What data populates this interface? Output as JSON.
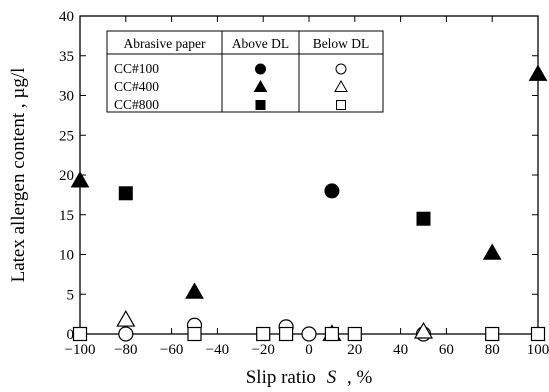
{
  "chart_data": {
    "type": "scatter",
    "xlabel_prefix": "Slip ratio",
    "xlabel_var": "S",
    "xlabel_suffix": ", %",
    "ylabel": "Latex allergen content , µg/l",
    "xlim": [
      -100,
      100
    ],
    "ylim": [
      0,
      40
    ],
    "xticks": [
      -100,
      -80,
      -60,
      -40,
      -20,
      0,
      20,
      40,
      60,
      80,
      100
    ],
    "yticks": [
      0,
      5,
      10,
      15,
      20,
      25,
      30,
      35,
      40
    ],
    "xtick_labels": [
      "−100",
      "−80",
      "−60",
      "−40",
      "−20",
      "0",
      "20",
      "40",
      "60",
      "80",
      "100"
    ],
    "ytick_labels": [
      "0",
      "5",
      "10",
      "15",
      "20",
      "25",
      "30",
      "35",
      "40"
    ],
    "grid": false,
    "legend": {
      "placement": "top-left",
      "headers": [
        "Abrasive paper",
        "Above DL",
        "Below DL"
      ],
      "rows": [
        {
          "label": "CC#100",
          "marker": "circle"
        },
        {
          "label": "CC#400",
          "marker": "triangle"
        },
        {
          "label": "CC#800",
          "marker": "square"
        }
      ]
    },
    "series": [
      {
        "name": "CC#100",
        "detection": "above",
        "marker": "circle",
        "filled": true,
        "points": [
          {
            "x": 10,
            "y": 18
          }
        ]
      },
      {
        "name": "CC#400",
        "detection": "above",
        "marker": "triangle",
        "filled": true,
        "points": [
          {
            "x": -100,
            "y": 19.3
          },
          {
            "x": -50,
            "y": 5.3
          },
          {
            "x": 80,
            "y": 10.2
          },
          {
            "x": 100,
            "y": 32.7
          }
        ]
      },
      {
        "name": "CC#800",
        "detection": "above",
        "marker": "square",
        "filled": true,
        "points": [
          {
            "x": -80,
            "y": 17.7
          },
          {
            "x": 50,
            "y": 14.5
          }
        ]
      },
      {
        "name": "CC#100",
        "detection": "below",
        "marker": "circle",
        "filled": false,
        "points": [
          {
            "x": -80,
            "y": 0
          },
          {
            "x": -50,
            "y": 1.1
          },
          {
            "x": -10,
            "y": 0.9
          },
          {
            "x": 0,
            "y": 0
          },
          {
            "x": 50,
            "y": 0
          }
        ]
      },
      {
        "name": "CC#400",
        "detection": "below",
        "marker": "triangle",
        "filled": false,
        "points": [
          {
            "x": -80,
            "y": 1.8
          },
          {
            "x": 50,
            "y": 0.3
          },
          {
            "x": 10,
            "y": 0
          }
        ]
      },
      {
        "name": "CC#800",
        "detection": "below",
        "marker": "square",
        "filled": false,
        "points": [
          {
            "x": -100,
            "y": 0
          },
          {
            "x": -50,
            "y": 0
          },
          {
            "x": -20,
            "y": 0
          },
          {
            "x": -10,
            "y": 0
          },
          {
            "x": 10,
            "y": 0
          },
          {
            "x": 20,
            "y": 0
          },
          {
            "x": 80,
            "y": 0
          },
          {
            "x": 100,
            "y": 0
          }
        ]
      }
    ]
  }
}
